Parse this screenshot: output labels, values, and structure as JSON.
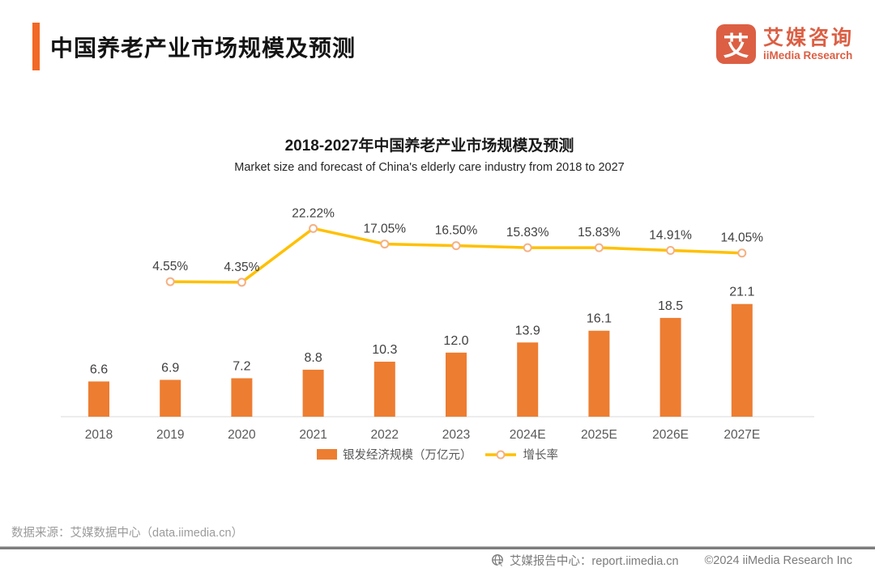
{
  "header": {
    "title": "中国养老产业市场规模及预测",
    "logo": {
      "mark": "艾",
      "cn": "艾媒咨询",
      "en": "iiMedia Research"
    }
  },
  "chart_data": {
    "type": "bar",
    "combo": "bar+line",
    "title": "2018-2027年中国养老产业市场规模及预测",
    "subtitle": "Market size and forecast of China's elderly care industry from 2018 to 2027",
    "categories": [
      "2018",
      "2019",
      "2020",
      "2021",
      "2022",
      "2023",
      "2024E",
      "2025E",
      "2026E",
      "2027E"
    ],
    "series": [
      {
        "name": "银发经济规模（万亿元）",
        "type": "bar",
        "unit": "万亿元",
        "color": "#ED7D31",
        "values": [
          6.6,
          6.9,
          7.2,
          8.8,
          10.3,
          12.0,
          13.9,
          16.1,
          18.5,
          21.1
        ]
      },
      {
        "name": "增长率",
        "type": "line",
        "unit": "%",
        "color": "#FFC000",
        "marker_stroke": "#F4B183",
        "values": [
          null,
          4.55,
          4.35,
          22.22,
          17.05,
          16.5,
          15.83,
          15.83,
          14.91,
          14.05
        ]
      }
    ],
    "legend_position": "bottom",
    "grid": false,
    "data_labels": true,
    "bar_axis_range": [
      0,
      25
    ],
    "line_axis_range_percent": [
      0,
      35
    ]
  },
  "footer": {
    "source": "数据来源：艾媒数据中心（data.iimedia.cn）",
    "report_center": "艾媒报告中心：report.iimedia.cn",
    "copyright": "©2024  iiMedia Research Inc"
  },
  "colors": {
    "accent_orange": "#F26824",
    "bar_orange": "#ED7D31",
    "line_yellow": "#FFC000",
    "marker_stroke": "#F4B183",
    "logo_red": "#DC5F44",
    "axis_gray": "#D9D9D9"
  }
}
